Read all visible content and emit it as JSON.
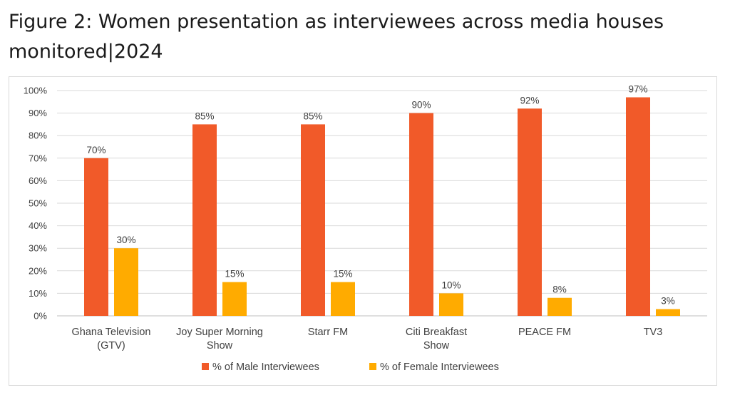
{
  "title": "Figure 2: Women presentation as interviewees across media houses monitored|2024",
  "chart_data": {
    "type": "bar",
    "categories": [
      [
        "Ghana Television",
        "(GTV)"
      ],
      [
        "Joy Super Morning",
        "Show"
      ],
      [
        "Starr FM"
      ],
      [
        "Citi Breakfast",
        "Show"
      ],
      [
        "PEACE FM"
      ],
      [
        "TV3"
      ]
    ],
    "series": [
      {
        "name": "% of Male Interviewees",
        "color": "#f15a29",
        "values": [
          70,
          85,
          85,
          90,
          92,
          97
        ],
        "labels": [
          "70%",
          "85%",
          "85%",
          "90%",
          "92%",
          "97%"
        ]
      },
      {
        "name": "% of Female Interviewees",
        "color": "#ffab00",
        "values": [
          30,
          15,
          15,
          10,
          8,
          3
        ],
        "labels": [
          "30%",
          "15%",
          "15%",
          "10%",
          "8%",
          "3%"
        ]
      }
    ],
    "ylim": [
      0,
      100
    ],
    "yticks": [
      "0%",
      "10%",
      "20%",
      "30%",
      "40%",
      "50%",
      "60%",
      "70%",
      "80%",
      "90%",
      "100%"
    ],
    "grid": true,
    "legend": "bottom"
  }
}
